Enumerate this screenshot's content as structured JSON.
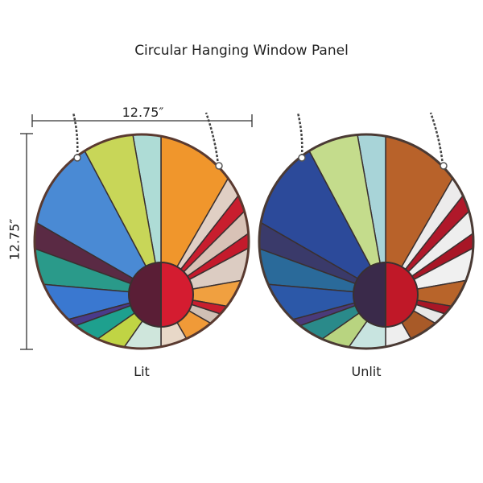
{
  "title": "Circular Hanging Window Panel",
  "dimensions": {
    "width": "12.75″",
    "height": "12.75″"
  },
  "panels": [
    {
      "label": "Lit",
      "colors": [
        "#f0962c",
        "#e0cfc4",
        "#c81e2e",
        "#d8c2b6",
        "#c41a2c",
        "#dcccc2",
        "#f0a040",
        "#c81e2e",
        "#d0c0b4",
        "#f09a38",
        "#e8d8c8",
        "#aedcd6",
        "#c8d658",
        "#4a8ad4",
        "#5a2a44",
        "#2a9a8a",
        "#3a78d0",
        "#4a3a8a",
        "#1ea08e",
        "#c0d444",
        "#cfe6dc"
      ],
      "sun": [
        "#5a1e36",
        "#d41c30"
      ],
      "frame": "#5a3a30"
    },
    {
      "label": "Unlit",
      "colors": [
        "#b8622a",
        "#ecebeb",
        "#b0182a",
        "#eeeeee",
        "#a81626",
        "#f0f0f0",
        "#b8642a",
        "#a81626",
        "#e8e8e8",
        "#a85a28",
        "#eeeeee",
        "#a8d4d8",
        "#c4dc8c",
        "#2c4a9a",
        "#3a3a6a",
        "#2a6a9a",
        "#2c58a8",
        "#4a3a7a",
        "#2a8a8a",
        "#b8d480",
        "#c8e4e0"
      ],
      "sun": [
        "#3a2a4a",
        "#c01828"
      ],
      "frame": "#4a3a34"
    }
  ]
}
